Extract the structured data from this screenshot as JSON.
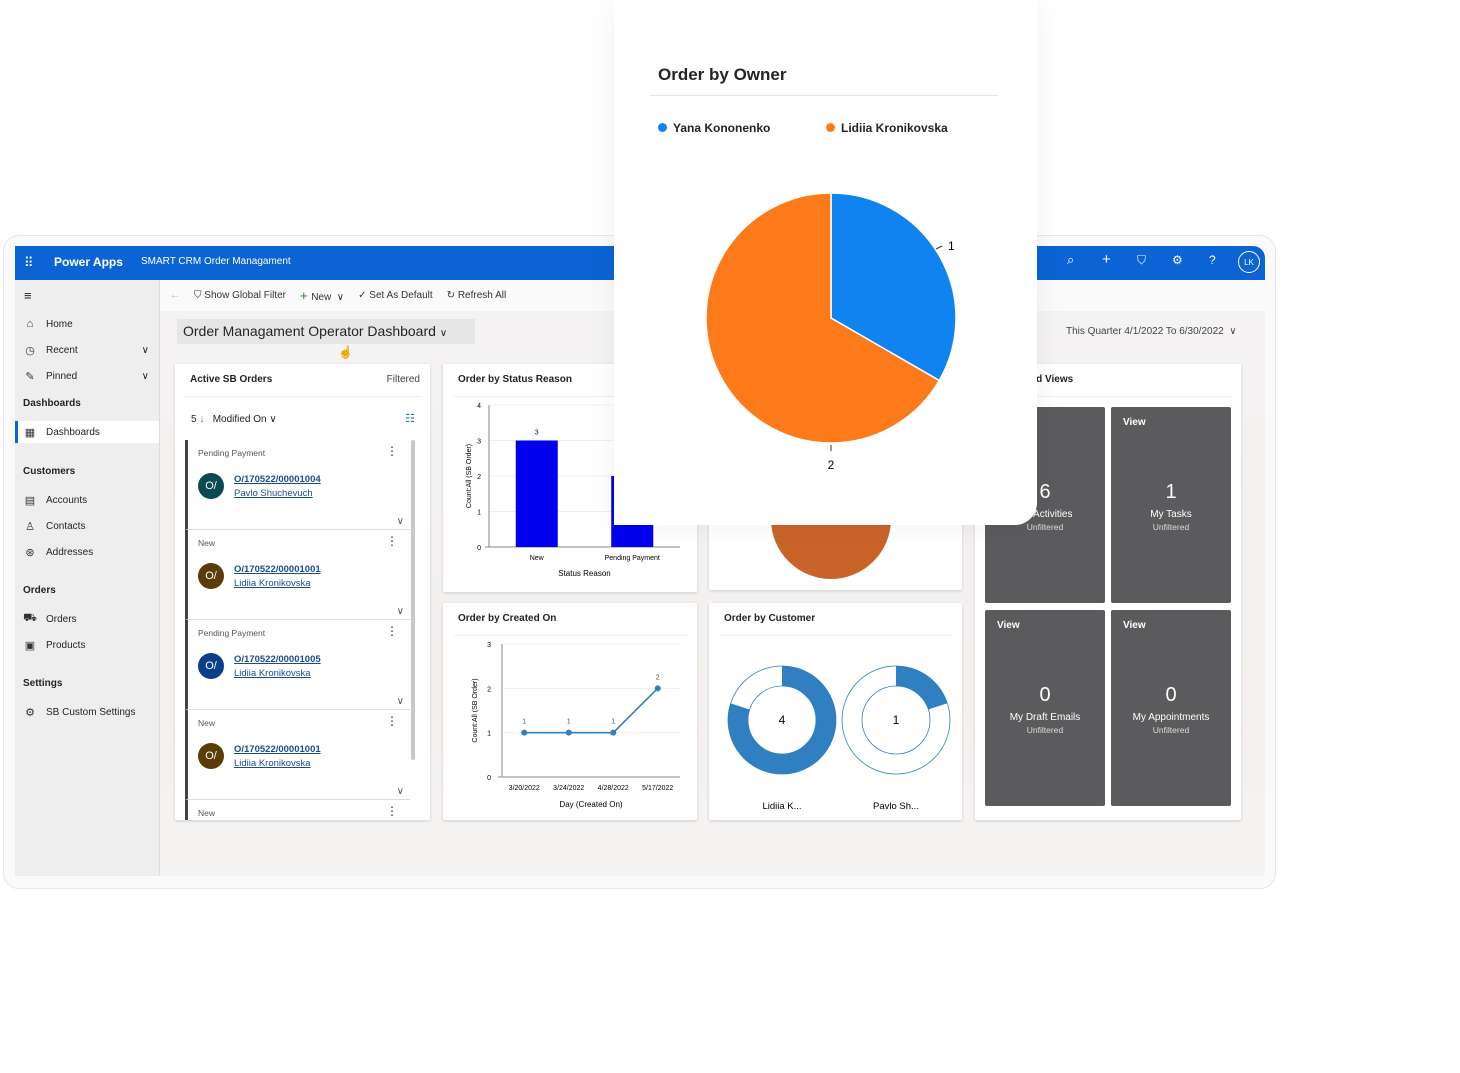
{
  "app": {
    "name": "Power Apps",
    "title": "SMART CRM Order Managament",
    "user_initials": "LK",
    "brand_color": "#0b63d4",
    "top_icons": [
      "search-icon",
      "plus-icon",
      "filter-icon",
      "gear-icon",
      "help-icon"
    ]
  },
  "sidebar": {
    "top": [
      {
        "label": "Home",
        "icon": "home-icon"
      },
      {
        "label": "Recent",
        "icon": "clock-icon"
      },
      {
        "label": "Pinned",
        "icon": "pin-icon"
      }
    ],
    "sections": [
      {
        "header": "Dashboards",
        "items": [
          {
            "label": "Dashboards",
            "icon": "dashboard-icon",
            "selected": true
          }
        ]
      },
      {
        "header": "Customers",
        "items": [
          {
            "label": "Accounts",
            "icon": "building-icon"
          },
          {
            "label": "Contacts",
            "icon": "person-icon"
          },
          {
            "label": "Addresses",
            "icon": "address-icon"
          }
        ]
      },
      {
        "header": "Orders",
        "items": [
          {
            "label": "Orders",
            "icon": "cart-icon"
          },
          {
            "label": "Products",
            "icon": "box-icon"
          }
        ]
      },
      {
        "header": "Settings",
        "items": [
          {
            "label": "SB Custom Settings",
            "icon": "gear-icon"
          }
        ]
      }
    ]
  },
  "toolbar": {
    "show_filter": "Show Global Filter",
    "new": "New",
    "set_default": "Set As Default",
    "refresh": "Refresh All"
  },
  "dashboard": {
    "title": "Order Managament Operator Dashboard",
    "period": "This Quarter 4/1/2022 To 6/30/2022"
  },
  "orders_list": {
    "title": "Active SB Orders",
    "filter_status": "Filtered",
    "count": "5",
    "sort_field": "Modified On",
    "rows": [
      {
        "status": "Pending Payment",
        "initials": "O/",
        "id": "O/170522/00001004",
        "customer": "Pavlo Shuchevuch",
        "color": "#0c4a52"
      },
      {
        "status": "New",
        "initials": "O/",
        "id": "O/170522/00001001",
        "customer": "Lidiia Kronikovska",
        "color": "#5a3c07"
      },
      {
        "status": "Pending Payment",
        "initials": "O/",
        "id": "O/170522/00001005",
        "customer": "Lidiia Kronikovska",
        "color": "#0b3f8a"
      },
      {
        "status": "New",
        "initials": "O/",
        "id": "O/170522/00001001",
        "customer": "Lidiia Kronikovska",
        "color": "#5a3c07"
      },
      {
        "status": "New"
      }
    ]
  },
  "streams": {
    "title": "Queues and Views",
    "tiles": [
      {
        "count": "6",
        "name": "My Activities",
        "filter": "Unfiltered"
      },
      {
        "label": "View",
        "count": "1",
        "name": "My Tasks",
        "filter": "Unfiltered"
      },
      {
        "label": "View",
        "count": "0",
        "name": "My Draft Emails",
        "filter": "Unfiltered"
      },
      {
        "label": "View",
        "count": "0",
        "name": "My Appointments",
        "filter": "Unfiltered"
      }
    ]
  },
  "chart_data": [
    {
      "type": "bar",
      "title": "Order by Status Reason",
      "categories": [
        "New",
        "Pending Payment"
      ],
      "values": [
        3,
        2
      ],
      "xlabel": "Status Reason",
      "ylabel": "Count:All (SB Order)",
      "ylim": [
        0,
        4
      ],
      "yticks": [
        "0",
        "1",
        "2",
        "3",
        "4"
      ],
      "data_labels": [
        "3"
      ],
      "color": "#0000ee"
    },
    {
      "type": "line",
      "title": "Order by Created On",
      "categories": [
        "3/20/2022",
        "3/24/2022",
        "4/28/2022",
        "5/17/2022"
      ],
      "values": [
        1,
        1,
        1,
        2
      ],
      "data_labels": [
        "1",
        "1",
        "1",
        "2"
      ],
      "xlabel": "Day (Created On)",
      "ylabel": "Count:All (SB Order)",
      "ylim": [
        0,
        3
      ],
      "yticks": [
        "0",
        "1",
        "2",
        "3"
      ],
      "color": "#2f7fc1"
    },
    {
      "type": "pie",
      "title": "Order by Customer",
      "categories": [
        "Lidiia K...",
        "Pavlo Sh..."
      ],
      "values": [
        4,
        1
      ],
      "value_labels": [
        "4",
        "1"
      ],
      "color": "#2f7fc1"
    },
    {
      "type": "pie",
      "title": "Order by Owner",
      "categories": [
        "Yana Kononenko",
        "Lidiia Kronikovska"
      ],
      "values": [
        1,
        2
      ],
      "value_labels": [
        "1",
        "2"
      ],
      "colors": [
        "#0f84f0",
        "#fd7a1a"
      ],
      "legend": "top"
    }
  ]
}
